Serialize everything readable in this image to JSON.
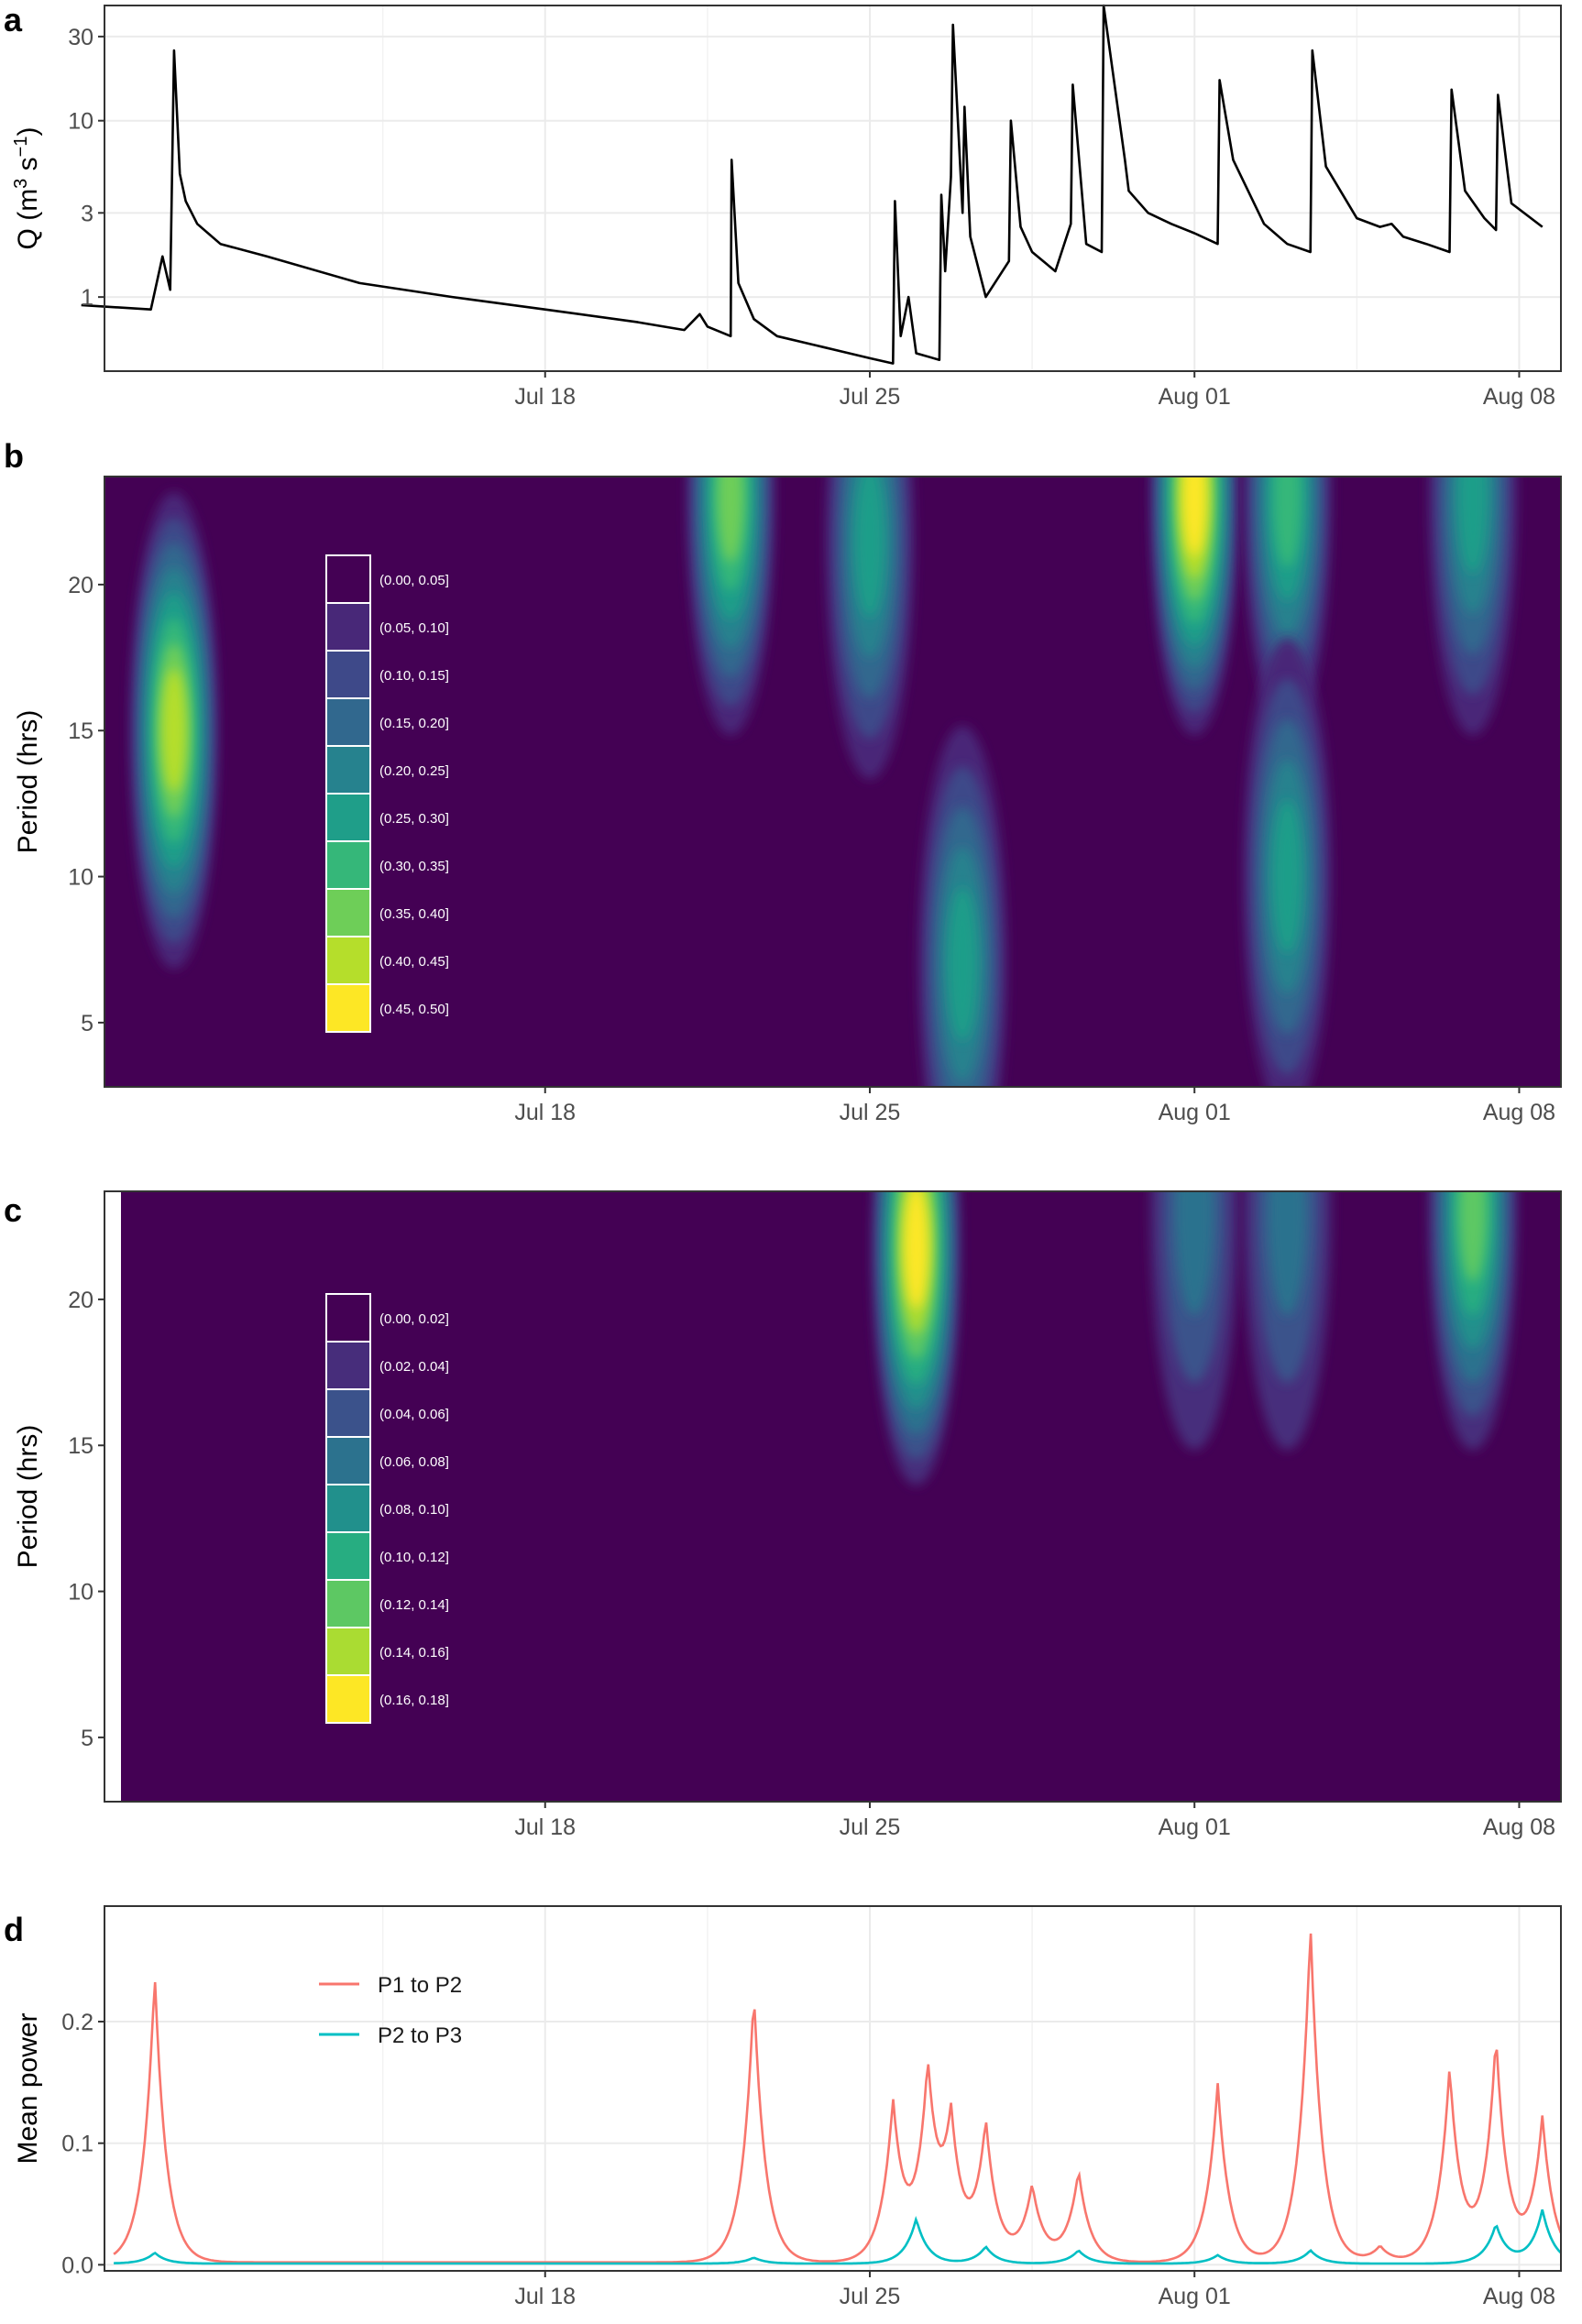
{
  "chart_data": [
    {
      "panel": "a",
      "type": "line",
      "ylabel_main": "Q (m",
      "ylabel_sup1": "3",
      "ylabel_mid": " s",
      "ylabel_sup2": "−1",
      "ylabel_end": ")",
      "yscale": "log",
      "yticks": [
        1,
        3,
        10,
        30
      ],
      "ytick_labels": [
        "1",
        "3",
        "10",
        "30"
      ],
      "ylim": [
        0.38,
        45
      ],
      "xlim": [
        "Jul 08",
        "Aug 08 12:00"
      ],
      "xticks": [
        "Jul 18",
        "Jul 25",
        "Aug 01",
        "Aug 08"
      ],
      "x": [
        "Jul 08 00:00",
        "Jul 09 12:00",
        "Jul 09 18:00",
        "Jul 09 22:00",
        "Jul 10 00:00",
        "Jul 10 03:00",
        "Jul 10 06:00",
        "Jul 10 12:00",
        "Jul 11 00:00",
        "Jul 12 00:00",
        "Jul 14 00:00",
        "Jul 16 00:00",
        "Jul 18 00:00",
        "Jul 20 00:00",
        "Jul 21 00:00",
        "Jul 21 08:00",
        "Jul 21 12:00",
        "Jul 22 00:00",
        "Jul 22 00:30",
        "Jul 22 04:00",
        "Jul 22 12:00",
        "Jul 23 00:00",
        "Jul 24 00:00",
        "Jul 25 00:00",
        "Jul 25 12:00",
        "Jul 25 13:00",
        "Jul 25 16:00",
        "Jul 25 20:00",
        "Jul 26 00:00",
        "Jul 26 12:00",
        "Jul 26 13:00",
        "Jul 26 15:00",
        "Jul 26 18:00",
        "Jul 26 19:00",
        "Jul 27 00:00",
        "Jul 27 01:00",
        "Jul 27 04:00",
        "Jul 27 12:00",
        "Jul 28 00:00",
        "Jul 28 01:00",
        "Jul 28 06:00",
        "Jul 28 12:00",
        "Jul 29 00:00",
        "Jul 29 08:00",
        "Jul 29 09:00",
        "Jul 29 16:00",
        "Jul 30 00:00",
        "Jul 30 01:00",
        "Jul 30 12:00",
        "Jul 30 14:00",
        "Jul 31 00:00",
        "Jul 31 12:00",
        "Aug 01 00:00",
        "Aug 01 12:00",
        "Aug 01 13:00",
        "Aug 01 20:00",
        "Aug 02 12:00",
        "Aug 03 00:00",
        "Aug 03 12:00",
        "Aug 03 13:00",
        "Aug 03 20:00",
        "Aug 04 12:00",
        "Aug 05 00:00",
        "Aug 05 06:00",
        "Aug 05 12:00",
        "Aug 06 00:00",
        "Aug 06 12:00",
        "Aug 06 13:00",
        "Aug 06 20:00",
        "Aug 07 06:00",
        "Aug 07 12:00",
        "Aug 07 13:00",
        "Aug 07 20:00",
        "Aug 08 12:00"
      ],
      "y": [
        0.9,
        0.85,
        1.7,
        1.1,
        25,
        5,
        3.5,
        2.6,
        2.0,
        1.7,
        1.2,
        1.0,
        0.85,
        0.72,
        0.65,
        0.8,
        0.68,
        0.6,
        6.0,
        1.2,
        0.75,
        0.6,
        0.52,
        0.45,
        0.42,
        3.5,
        0.6,
        1.0,
        0.48,
        0.44,
        3.8,
        1.4,
        4.8,
        35,
        3.0,
        12.0,
        2.2,
        1.0,
        1.6,
        10.0,
        2.5,
        1.8,
        1.4,
        2.6,
        16.0,
        2.0,
        1.8,
        45,
        6.0,
        4.0,
        3.0,
        2.6,
        2.3,
        2.0,
        17,
        6.0,
        2.6,
        2.0,
        1.8,
        25,
        5.5,
        2.8,
        2.5,
        2.6,
        2.2,
        2.0,
        1.8,
        15,
        4.0,
        2.8,
        2.4,
        14,
        3.4,
        2.5
      ]
    },
    {
      "panel": "b",
      "type": "heatmap",
      "ylabel": "Period (hrs)",
      "yticks": [
        5,
        10,
        15,
        20
      ],
      "ytick_labels": [
        "5",
        "10",
        "15",
        "20"
      ],
      "ylim": [
        2.8,
        23.7
      ],
      "xticks": [
        "Jul 18",
        "Jul 25",
        "Aug 01",
        "Aug 08"
      ],
      "legend_bins": [
        "(0.00, 0.05]",
        "(0.05, 0.10]",
        "(0.10, 0.15]",
        "(0.15, 0.20]",
        "(0.20, 0.25]",
        "(0.25, 0.30]",
        "(0.30, 0.35]",
        "(0.35, 0.40]",
        "(0.40, 0.45]",
        "(0.45, 0.50]"
      ],
      "colors": [
        "#440154",
        "#482878",
        "#3E4989",
        "#31688E",
        "#26828E",
        "#1F9E89",
        "#35B779",
        "#6ECE58",
        "#B5DE2B",
        "#FDE725"
      ],
      "hotspots": [
        {
          "day": "Jul 10",
          "period": 15.0,
          "level": 0.47
        },
        {
          "day": "Jul 22",
          "period": 23.0,
          "level": 0.4
        },
        {
          "day": "Jul 25",
          "period": 21.5,
          "level": 0.3
        },
        {
          "day": "Jul 27",
          "period": 7.0,
          "level": 0.3
        },
        {
          "day": "Aug 01",
          "period": 23.0,
          "level": 0.48
        },
        {
          "day": "Aug 03",
          "period": 23.0,
          "level": 0.35
        },
        {
          "day": "Aug 03",
          "period": 10.0,
          "level": 0.3
        },
        {
          "day": "Aug 07",
          "period": 23.0,
          "level": 0.3
        }
      ]
    },
    {
      "panel": "c",
      "type": "heatmap",
      "ylabel": "Period (hrs)",
      "yticks": [
        5,
        10,
        15,
        20
      ],
      "ytick_labels": [
        "5",
        "10",
        "15",
        "20"
      ],
      "ylim": [
        2.8,
        23.7
      ],
      "xticks": [
        "Jul 18",
        "Jul 25",
        "Aug 01",
        "Aug 08"
      ],
      "legend_bins": [
        "(0.00, 0.02]",
        "(0.02, 0.04]",
        "(0.04, 0.06]",
        "(0.06, 0.08]",
        "(0.08, 0.10]",
        "(0.10, 0.12]",
        "(0.12, 0.14]",
        "(0.14, 0.16]",
        "(0.16, 0.18]"
      ],
      "colors": [
        "#440154",
        "#472D7B",
        "#3B528B",
        "#2C728E",
        "#21908C",
        "#27AD81",
        "#5DC863",
        "#AADC32",
        "#FDE725"
      ],
      "hotspots": [
        {
          "day": "Jul 26",
          "period": 21.8,
          "level": 0.17
        },
        {
          "day": "Aug 07",
          "period": 23.0,
          "level": 0.13
        },
        {
          "day": "Aug 01",
          "period": 23.0,
          "level": 0.06
        },
        {
          "day": "Aug 03",
          "period": 23.0,
          "level": 0.07
        }
      ]
    },
    {
      "panel": "d",
      "type": "line",
      "ylabel": "Mean power",
      "yticks": [
        0.0,
        0.1,
        0.2
      ],
      "ytick_labels": [
        "0.0",
        "0.1",
        "0.2"
      ],
      "ylim": [
        -0.005,
        0.295
      ],
      "xticks": [
        "Jul 18",
        "Jul 25",
        "Aug 01",
        "Aug 08"
      ],
      "series": [
        {
          "name": "P1 to P2",
          "color": "#F8766D",
          "peaks": [
            {
              "day": "Jul 09 14:00",
              "value": 0.24
            },
            {
              "day": "Jul 22 12:00",
              "value": 0.225
            },
            {
              "day": "Jul 25 12:00",
              "value": 0.13
            },
            {
              "day": "Jul 26 06:00",
              "value": 0.15
            },
            {
              "day": "Jul 26 18:00",
              "value": 0.108
            },
            {
              "day": "Jul 27 12:00",
              "value": 0.114
            },
            {
              "day": "Jul 28 12:00",
              "value": 0.064
            },
            {
              "day": "Jul 29 12:00",
              "value": 0.077
            },
            {
              "day": "Aug 01 12:00",
              "value": 0.15
            },
            {
              "day": "Aug 03 12:00",
              "value": 0.28
            },
            {
              "day": "Aug 05 00:00",
              "value": 0.015
            },
            {
              "day": "Aug 06 12:00",
              "value": 0.16
            },
            {
              "day": "Aug 07 12:00",
              "value": 0.185
            },
            {
              "day": "Aug 08 12:00",
              "value": 0.12
            }
          ]
        },
        {
          "name": "P2 to P3",
          "color": "#00BFC4",
          "peaks": [
            {
              "day": "Jul 09 14:00",
              "value": 0.01
            },
            {
              "day": "Jul 22 12:00",
              "value": 0.006
            },
            {
              "day": "Jul 26 00:00",
              "value": 0.038
            },
            {
              "day": "Jul 27 12:00",
              "value": 0.015
            },
            {
              "day": "Jul 29 12:00",
              "value": 0.012
            },
            {
              "day": "Aug 01 12:00",
              "value": 0.008
            },
            {
              "day": "Aug 03 12:00",
              "value": 0.012
            },
            {
              "day": "Aug 07 12:00",
              "value": 0.033
            },
            {
              "day": "Aug 08 12:00",
              "value": 0.045
            }
          ]
        }
      ]
    }
  ],
  "labels": {
    "a": "a",
    "b": "b",
    "c": "c",
    "d": "d"
  }
}
